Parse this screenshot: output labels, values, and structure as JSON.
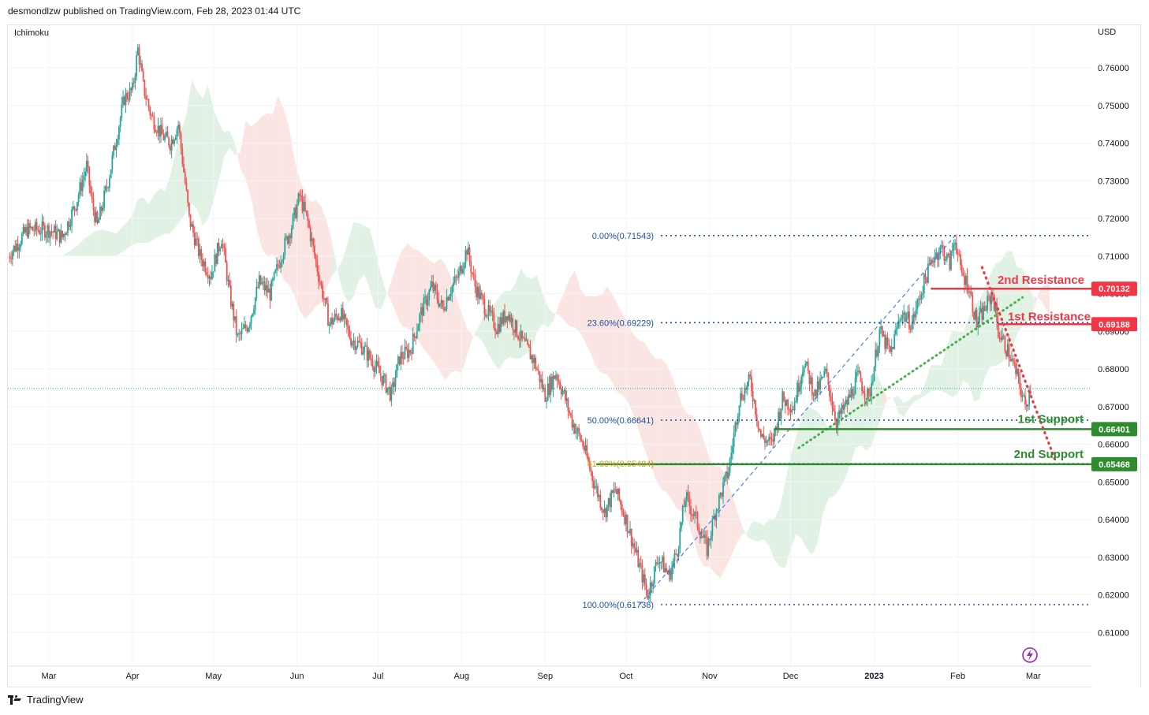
{
  "header": {
    "published": "desmondlzw published on TradingView.com, Feb 28, 2023 01:44 UTC"
  },
  "footer": {
    "brand": "TradingView"
  },
  "chart_data": {
    "type": "candlestick",
    "indicator_label": "Ichimoku",
    "currency": "USD",
    "y_ticks": [
      "0.76000",
      "0.75000",
      "0.74000",
      "0.73000",
      "0.72000",
      "0.71000",
      "0.70000",
      "0.69000",
      "0.68000",
      "0.67000",
      "0.66000",
      "0.65000",
      "0.64000",
      "0.63000",
      "0.62000",
      "0.61000"
    ],
    "ylim": [
      0.6,
      0.7675
    ],
    "x_ticks": [
      {
        "label": "Mar",
        "day": 0
      },
      {
        "label": "Apr",
        "day": 31
      },
      {
        "label": "May",
        "day": 61
      },
      {
        "label": "Jun",
        "day": 92
      },
      {
        "label": "Jul",
        "day": 122
      },
      {
        "label": "Aug",
        "day": 153
      },
      {
        "label": "Sep",
        "day": 184
      },
      {
        "label": "Oct",
        "day": 214
      },
      {
        "label": "Nov",
        "day": 245
      },
      {
        "label": "Dec",
        "day": 275
      },
      {
        "label": "2023",
        "day": 306
      },
      {
        "label": "Feb",
        "day": 337
      },
      {
        "label": "Mar",
        "day": 365
      }
    ],
    "price_path": [
      [
        -15,
        0.71
      ],
      [
        -8,
        0.717
      ],
      [
        0,
        0.717
      ],
      [
        5,
        0.715
      ],
      [
        10,
        0.724
      ],
      [
        14,
        0.734
      ],
      [
        16,
        0.724
      ],
      [
        18,
        0.718
      ],
      [
        22,
        0.73
      ],
      [
        26,
        0.745
      ],
      [
        28,
        0.752
      ],
      [
        31,
        0.754
      ],
      [
        33,
        0.765
      ],
      [
        35,
        0.755
      ],
      [
        38,
        0.747
      ],
      [
        42,
        0.742
      ],
      [
        45,
        0.74
      ],
      [
        48,
        0.745
      ],
      [
        52,
        0.72
      ],
      [
        56,
        0.71
      ],
      [
        60,
        0.705
      ],
      [
        62,
        0.71
      ],
      [
        64,
        0.715
      ],
      [
        67,
        0.7
      ],
      [
        70,
        0.688
      ],
      [
        74,
        0.692
      ],
      [
        78,
        0.703
      ],
      [
        82,
        0.7
      ],
      [
        86,
        0.71
      ],
      [
        90,
        0.718
      ],
      [
        93,
        0.726
      ],
      [
        96,
        0.719
      ],
      [
        100,
        0.705
      ],
      [
        104,
        0.692
      ],
      [
        108,
        0.695
      ],
      [
        112,
        0.688
      ],
      [
        116,
        0.686
      ],
      [
        120,
        0.682
      ],
      [
        124,
        0.677
      ],
      [
        127,
        0.673
      ],
      [
        130,
        0.683
      ],
      [
        134,
        0.685
      ],
      [
        138,
        0.695
      ],
      [
        142,
        0.702
      ],
      [
        146,
        0.696
      ],
      [
        148,
        0.7
      ],
      [
        152,
        0.705
      ],
      [
        155,
        0.712
      ],
      [
        158,
        0.702
      ],
      [
        162,
        0.696
      ],
      [
        166,
        0.691
      ],
      [
        170,
        0.695
      ],
      [
        175,
        0.688
      ],
      [
        180,
        0.682
      ],
      [
        184,
        0.673
      ],
      [
        188,
        0.679
      ],
      [
        191,
        0.673
      ],
      [
        194,
        0.666
      ],
      [
        198,
        0.66
      ],
      [
        202,
        0.65
      ],
      [
        206,
        0.642
      ],
      [
        210,
        0.648
      ],
      [
        214,
        0.64
      ],
      [
        218,
        0.63
      ],
      [
        222,
        0.62
      ],
      [
        226,
        0.63
      ],
      [
        230,
        0.625
      ],
      [
        233,
        0.632
      ],
      [
        236,
        0.646
      ],
      [
        240,
        0.64
      ],
      [
        244,
        0.632
      ],
      [
        247,
        0.642
      ],
      [
        252,
        0.653
      ],
      [
        256,
        0.672
      ],
      [
        260,
        0.677
      ],
      [
        264,
        0.662
      ],
      [
        268,
        0.66
      ],
      [
        272,
        0.672
      ],
      [
        276,
        0.67
      ],
      [
        280,
        0.682
      ],
      [
        284,
        0.673
      ],
      [
        288,
        0.679
      ],
      [
        292,
        0.666
      ],
      [
        296,
        0.671
      ],
      [
        300,
        0.678
      ],
      [
        304,
        0.672
      ],
      [
        308,
        0.69
      ],
      [
        312,
        0.684
      ],
      [
        316,
        0.695
      ],
      [
        320,
        0.692
      ],
      [
        324,
        0.702
      ],
      [
        328,
        0.71
      ],
      [
        331,
        0.712
      ],
      [
        334,
        0.708
      ],
      [
        336,
        0.715
      ],
      [
        338,
        0.706
      ],
      [
        341,
        0.702
      ],
      [
        344,
        0.692
      ],
      [
        347,
        0.696
      ],
      [
        350,
        0.7
      ],
      [
        352,
        0.69
      ],
      [
        356,
        0.684
      ],
      [
        359,
        0.678
      ],
      [
        362,
        0.67
      ],
      [
        364,
        0.675
      ]
    ],
    "last_price": 0.6748,
    "fibonacci": [
      {
        "label": "0.00%(0.71543)",
        "value": 0.71543,
        "color": "#1e4fa3"
      },
      {
        "label": "23.60%(0.69229)",
        "value": 0.69229,
        "color": "#1e4fa3"
      },
      {
        "label": "50.00%(0.66641)",
        "value": 0.66641,
        "color": "#1e4fa3"
      },
      {
        "label": "61.80%(0.65484)",
        "value": 0.65484,
        "color": "#d4a017"
      },
      {
        "label": "100.00%(0.61738)",
        "value": 0.61738,
        "color": "#1e4fa3"
      }
    ],
    "levels": [
      {
        "name": "2nd Resistance",
        "value": 0.70132,
        "badge": "0.70132",
        "color": "#f23645",
        "from_day": 327
      },
      {
        "name": "1st Resistance",
        "value": 0.69188,
        "badge": "0.69188",
        "color": "#f23645",
        "from_day": 352
      },
      {
        "name": "1st Support",
        "value": 0.66401,
        "badge": "0.66401",
        "color": "#2e8b2e",
        "from_day": 269
      },
      {
        "name": "2nd Support",
        "value": 0.65468,
        "badge": "0.65468",
        "color": "#2e8b2e",
        "from_day": 203
      }
    ],
    "trendline_fib": {
      "from": [
        219,
        0.61738
      ],
      "to": [
        336,
        0.71543
      ]
    },
    "trendline_green": {
      "from": [
        278,
        0.659
      ],
      "to": [
        361,
        0.699
      ]
    },
    "trendline_red": {
      "from": [
        346,
        0.707
      ],
      "to": [
        373,
        0.656
      ]
    },
    "colors": {
      "up": "#26a69a",
      "down": "#ef5350",
      "cloud_bull": "#d7eddc",
      "cloud_bear": "#fadcda"
    }
  }
}
